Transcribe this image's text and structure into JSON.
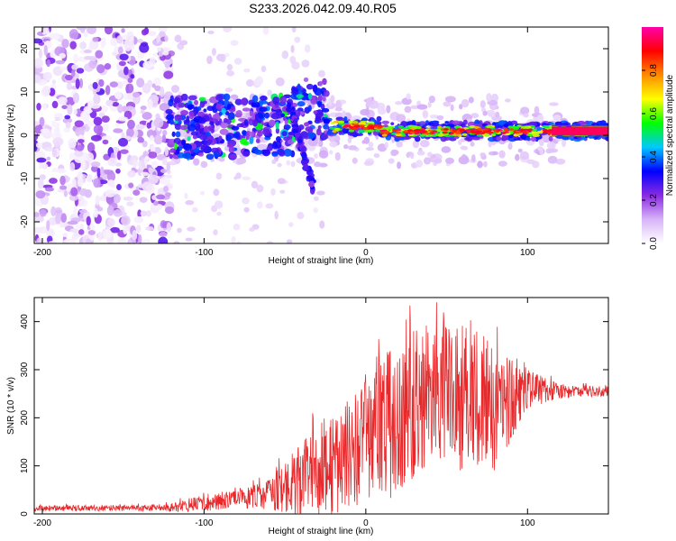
{
  "page": {
    "title": "S233.2026.042.09.40.R05"
  },
  "chart_data": [
    {
      "id": "spectrogram",
      "type": "heatmap",
      "title": "",
      "xlabel": "Height of straight line (km)",
      "ylabel": "Frequency (Hz)",
      "xlim": [
        -205,
        150
      ],
      "ylim": [
        -25,
        25
      ],
      "xticks": [
        -200,
        -100,
        0,
        100
      ],
      "yticks": [
        -20,
        -10,
        0,
        10,
        20
      ],
      "colorbar": {
        "label": "Normalized spectral amplitude",
        "range": [
          0.0,
          1.0
        ],
        "ticks": [
          "0.0",
          "0.2",
          "0.4",
          "0.6",
          "0.8"
        ],
        "colors": [
          "#ffffff",
          "#d8b4f8",
          "#8a2be2",
          "#0000ff",
          "#00c8ff",
          "#00ff00",
          "#ffff00",
          "#ff8c00",
          "#ff0000",
          "#ff00aa"
        ]
      },
      "features": [
        {
          "name": "noise-region",
          "x_range": [
            -205,
            -120
          ],
          "freq_range": [
            -25,
            25
          ],
          "amplitude": 0.15
        },
        {
          "name": "main-band",
          "x_range": [
            -25,
            150
          ],
          "center_freq": 1,
          "amplitude": 0.95
        },
        {
          "name": "branch",
          "x_range": [
            -50,
            -30
          ],
          "freq_range": [
            -13,
            10
          ],
          "amplitude": 0.3
        }
      ]
    },
    {
      "id": "snr",
      "type": "line",
      "title": "",
      "xlabel": "Height of straight line (km)",
      "ylabel": "SNR (10 * v/v)",
      "xlim": [
        -205,
        150
      ],
      "ylim": [
        0,
        450
      ],
      "xticks": [
        -200,
        -100,
        0,
        100
      ],
      "yticks": [
        0,
        100,
        200,
        300,
        400
      ],
      "series": [
        {
          "name": "SNR",
          "color": "#e8282a",
          "envelope_x": [
            -205,
            -150,
            -120,
            -100,
            -80,
            -60,
            -40,
            -20,
            0,
            20,
            40,
            60,
            80,
            100,
            120,
            150
          ],
          "envelope_mean": [
            12,
            12,
            13,
            25,
            30,
            40,
            70,
            100,
            150,
            200,
            260,
            240,
            220,
            260,
            255,
            255
          ],
          "envelope_amp": [
            6,
            6,
            8,
            20,
            18,
            30,
            80,
            100,
            130,
            170,
            150,
            160,
            140,
            40,
            15,
            10
          ]
        }
      ]
    }
  ]
}
